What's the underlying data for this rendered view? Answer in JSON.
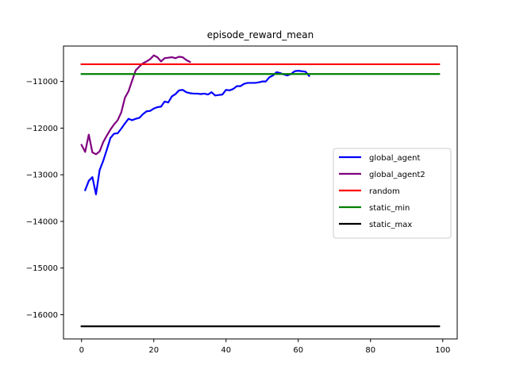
{
  "chart_data": {
    "type": "line",
    "title": "episode_reward_mean",
    "xlabel": "",
    "ylabel": "",
    "xlim": [
      -5,
      104
    ],
    "ylim": [
      -16520,
      -10240
    ],
    "xticks": [
      0,
      20,
      40,
      60,
      80,
      100
    ],
    "yticks": [
      -16000,
      -15000,
      -14000,
      -13000,
      -12000,
      -11000
    ],
    "grid": false,
    "legend_position": "center-right",
    "series": [
      {
        "name": "global_agent",
        "color": "#0000ff",
        "x": [
          1,
          2,
          3,
          4,
          5,
          6,
          7,
          8,
          9,
          10,
          11,
          12,
          13,
          14,
          15,
          16,
          17,
          18,
          19,
          20,
          21,
          22,
          23,
          24,
          25,
          26,
          27,
          28,
          29,
          30,
          31,
          32,
          33,
          34,
          35,
          36,
          37,
          38,
          39,
          40,
          41,
          42,
          43,
          44,
          45,
          46,
          47,
          48,
          49,
          50,
          51,
          52,
          53,
          54,
          55,
          56,
          57,
          58,
          59,
          60,
          61,
          62,
          63
        ],
        "y": [
          -13330,
          -13130,
          -13050,
          -13420,
          -12900,
          -12700,
          -12460,
          -12210,
          -12120,
          -12110,
          -12010,
          -11900,
          -11800,
          -11830,
          -11800,
          -11780,
          -11700,
          -11640,
          -11630,
          -11580,
          -11550,
          -11540,
          -11430,
          -11450,
          -11320,
          -11270,
          -11190,
          -11180,
          -11230,
          -11250,
          -11260,
          -11260,
          -11270,
          -11260,
          -11280,
          -11230,
          -11300,
          -11290,
          -11280,
          -11180,
          -11190,
          -11160,
          -11100,
          -11100,
          -11050,
          -11030,
          -11030,
          -11030,
          -11020,
          -11000,
          -11000,
          -10910,
          -10870,
          -10800,
          -10820,
          -10850,
          -10870,
          -10840,
          -10780,
          -10770,
          -10780,
          -10790,
          -10880
        ]
      },
      {
        "name": "global_agent2",
        "color": "#800080",
        "x": [
          0,
          1,
          2,
          3,
          4,
          5,
          6,
          7,
          8,
          9,
          10,
          11,
          12,
          13,
          14,
          15,
          16,
          17,
          18,
          19,
          20,
          21,
          22,
          23,
          24,
          25,
          26,
          27,
          28,
          29,
          30
        ],
        "y": [
          -12360,
          -12510,
          -12140,
          -12520,
          -12560,
          -12500,
          -12300,
          -12160,
          -12030,
          -11920,
          -11830,
          -11660,
          -11350,
          -11210,
          -10980,
          -10760,
          -10680,
          -10610,
          -10570,
          -10520,
          -10440,
          -10480,
          -10570,
          -10500,
          -10490,
          -10480,
          -10500,
          -10470,
          -10480,
          -10540,
          -10580
        ]
      },
      {
        "name": "random",
        "color": "#ff0000",
        "x": [
          0,
          99
        ],
        "y": [
          -10630,
          -10630
        ]
      },
      {
        "name": "static_min",
        "color": "#008000",
        "x": [
          0,
          99
        ],
        "y": [
          -10840,
          -10840
        ]
      },
      {
        "name": "static_max",
        "color": "#000000",
        "x": [
          0,
          99
        ],
        "y": [
          -16250,
          -16250
        ]
      }
    ]
  }
}
